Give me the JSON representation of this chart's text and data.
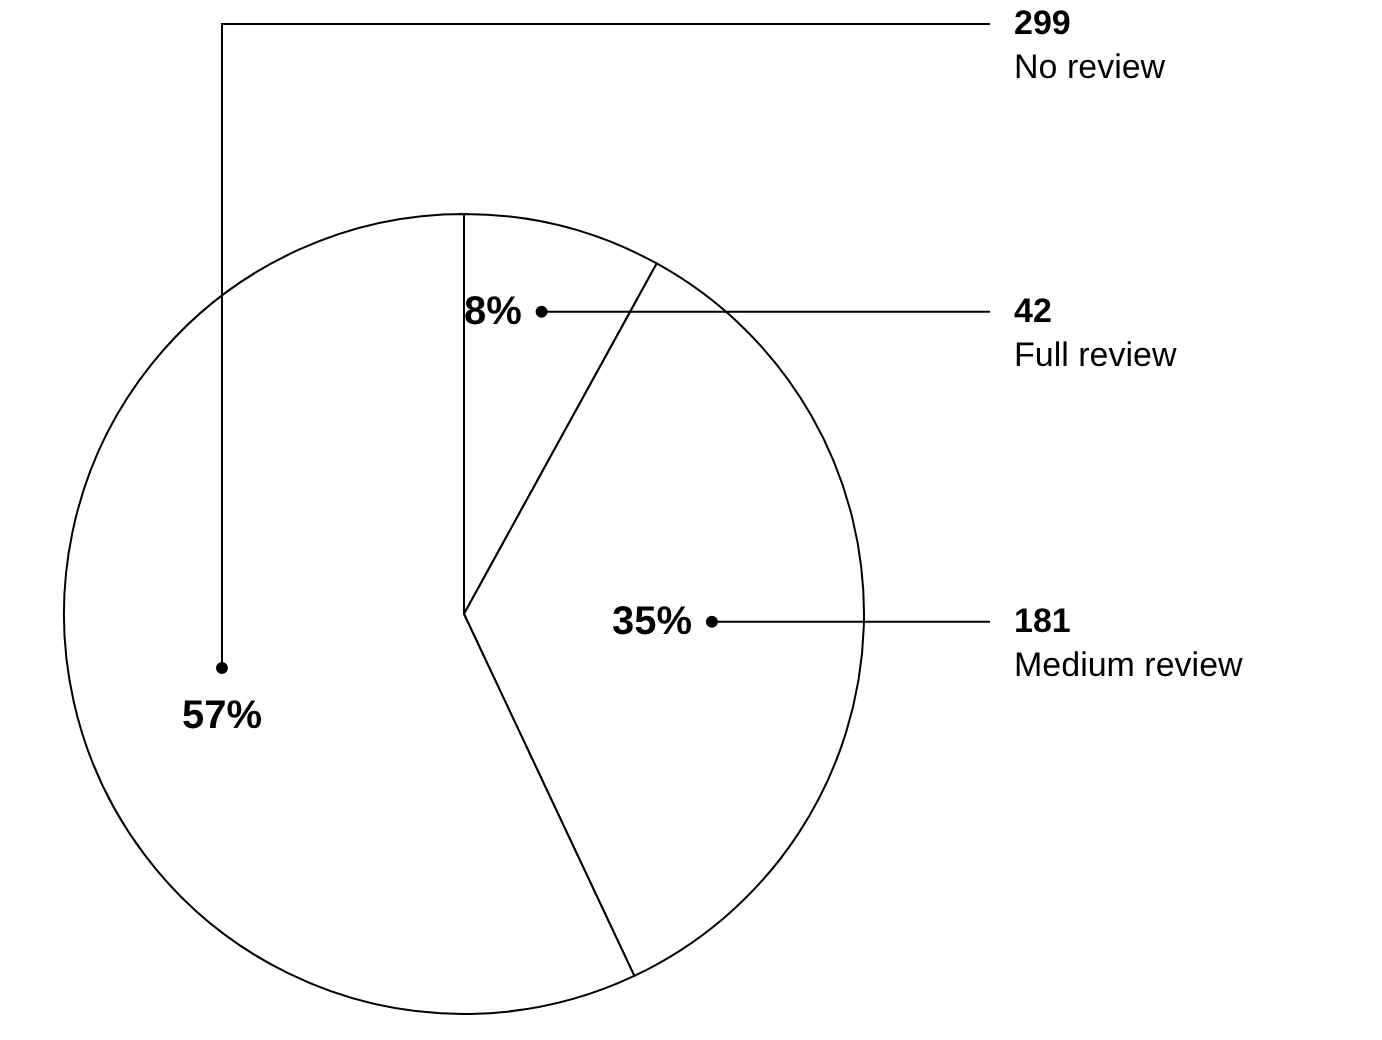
{
  "chart_data": {
    "type": "pie",
    "categories": [
      "Full review",
      "Medium review",
      "No review"
    ],
    "values": [
      8,
      35,
      57
    ],
    "value_labels": [
      "8%",
      "35%",
      "57%"
    ],
    "annotations": [
      "42",
      "181",
      "299"
    ],
    "colors": [
      "#ffffff",
      "#ffffff",
      "#ffffff"
    ],
    "data_labels": true,
    "legend": false
  }
}
